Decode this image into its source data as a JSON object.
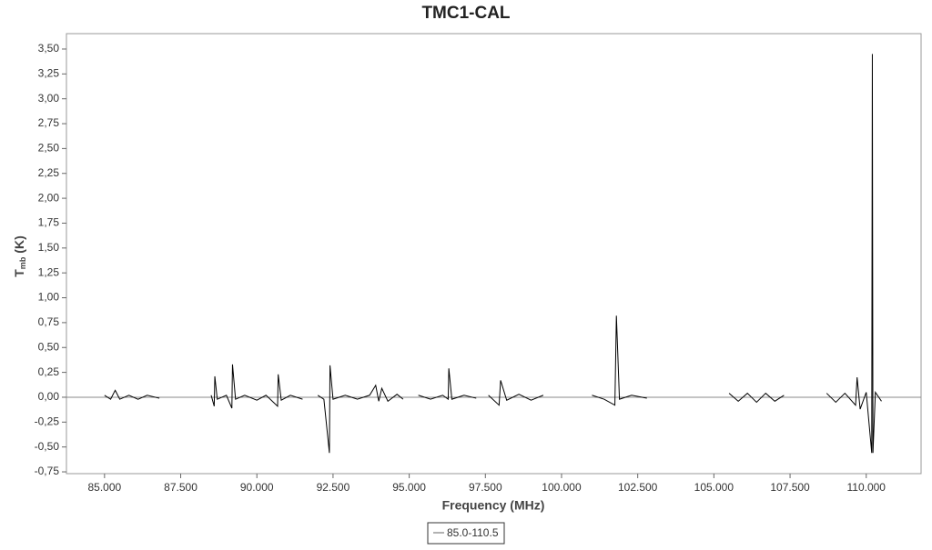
{
  "chart_data": {
    "type": "line",
    "title": "TMC1-CAL",
    "x_label": "Frequency (MHz)",
    "y_label": {
      "main": "T",
      "sub": "mb",
      "unit": "(K)"
    },
    "xlim": [
      83.75,
      111.8
    ],
    "ylim": [
      -0.768,
      3.655
    ],
    "xticks": [
      {
        "value": 85,
        "label": "85.000"
      },
      {
        "value": 87.5,
        "label": "87.500"
      },
      {
        "value": 90,
        "label": "90.000"
      },
      {
        "value": 92.5,
        "label": "92.500"
      },
      {
        "value": 95,
        "label": "95.000"
      },
      {
        "value": 97.5,
        "label": "97.500"
      },
      {
        "value": 100,
        "label": "100.000"
      },
      {
        "value": 102.5,
        "label": "102.500"
      },
      {
        "value": 105,
        "label": "105.000"
      },
      {
        "value": 107.5,
        "label": "107.500"
      },
      {
        "value": 110,
        "label": "110.000"
      }
    ],
    "yticks": [
      {
        "value": -0.75,
        "label": "-0,75"
      },
      {
        "value": -0.5,
        "label": "-0,50"
      },
      {
        "value": -0.25,
        "label": "-0,25"
      },
      {
        "value": 0,
        "label": "0,00"
      },
      {
        "value": 0.25,
        "label": "0,25"
      },
      {
        "value": 0.5,
        "label": "0,50"
      },
      {
        "value": 0.75,
        "label": "0,75"
      },
      {
        "value": 1,
        "label": "1,00"
      },
      {
        "value": 1.25,
        "label": "1,25"
      },
      {
        "value": 1.5,
        "label": "1,50"
      },
      {
        "value": 1.75,
        "label": "1,75"
      },
      {
        "value": 2,
        "label": "2,00"
      },
      {
        "value": 2.25,
        "label": "2,25"
      },
      {
        "value": 2.5,
        "label": "2,50"
      },
      {
        "value": 2.75,
        "label": "2,75"
      },
      {
        "value": 3,
        "label": "3,00"
      },
      {
        "value": 3.25,
        "label": "3,25"
      },
      {
        "value": 3.5,
        "label": "3,50"
      }
    ],
    "x": [
      85.0,
      85.2,
      85.35,
      85.5,
      85.8,
      86.1,
      86.4,
      86.8,
      87.5,
      88.5,
      88.6,
      88.62,
      88.7,
      89.0,
      89.18,
      89.2,
      89.3,
      89.6,
      90.0,
      90.3,
      90.68,
      90.7,
      90.8,
      91.1,
      91.5,
      91.7,
      92.0,
      92.2,
      92.38,
      92.4,
      92.5,
      92.9,
      93.3,
      93.7,
      93.9,
      94.0,
      94.1,
      94.3,
      94.6,
      94.8,
      95.0,
      95.3,
      95.7,
      96.1,
      96.28,
      96.3,
      96.4,
      96.8,
      97.2,
      97.4,
      97.6,
      97.95,
      98.0,
      98.2,
      98.6,
      99.0,
      99.4,
      100.0,
      101.0,
      101.4,
      101.75,
      101.8,
      101.9,
      102.3,
      102.8,
      104.0,
      105.5,
      105.8,
      106.1,
      106.4,
      106.7,
      107.0,
      107.3,
      108.0,
      108.7,
      109.0,
      109.3,
      109.65,
      109.7,
      109.8,
      110.0,
      110.18,
      110.2,
      110.22,
      110.3,
      110.5
    ],
    "series": [
      {
        "name": "85.0-110.5",
        "color": "#000000",
        "values": [
          0.02,
          -0.02,
          0.07,
          -0.02,
          0.02,
          -0.02,
          0.02,
          -0.01,
          null,
          0.02,
          -0.09,
          0.21,
          -0.02,
          0.02,
          -0.11,
          0.33,
          -0.02,
          0.02,
          -0.03,
          0.02,
          -0.09,
          0.23,
          -0.03,
          0.02,
          -0.02,
          null,
          0.02,
          -0.02,
          -0.56,
          0.32,
          -0.02,
          0.02,
          -0.02,
          0.02,
          0.12,
          -0.04,
          0.09,
          -0.04,
          0.03,
          -0.02,
          null,
          0.02,
          -0.02,
          0.02,
          -0.02,
          0.29,
          -0.02,
          0.02,
          -0.01,
          null,
          0.02,
          -0.08,
          0.17,
          -0.03,
          0.03,
          -0.03,
          0.02,
          null,
          0.02,
          -0.02,
          -0.08,
          0.82,
          -0.02,
          0.02,
          -0.01,
          null,
          0.04,
          -0.04,
          0.04,
          -0.05,
          0.04,
          -0.04,
          0.02,
          null,
          0.04,
          -0.05,
          0.04,
          -0.08,
          0.2,
          -0.12,
          0.05,
          -0.56,
          3.45,
          -0.56,
          0.05,
          -0.04
        ]
      }
    ]
  }
}
